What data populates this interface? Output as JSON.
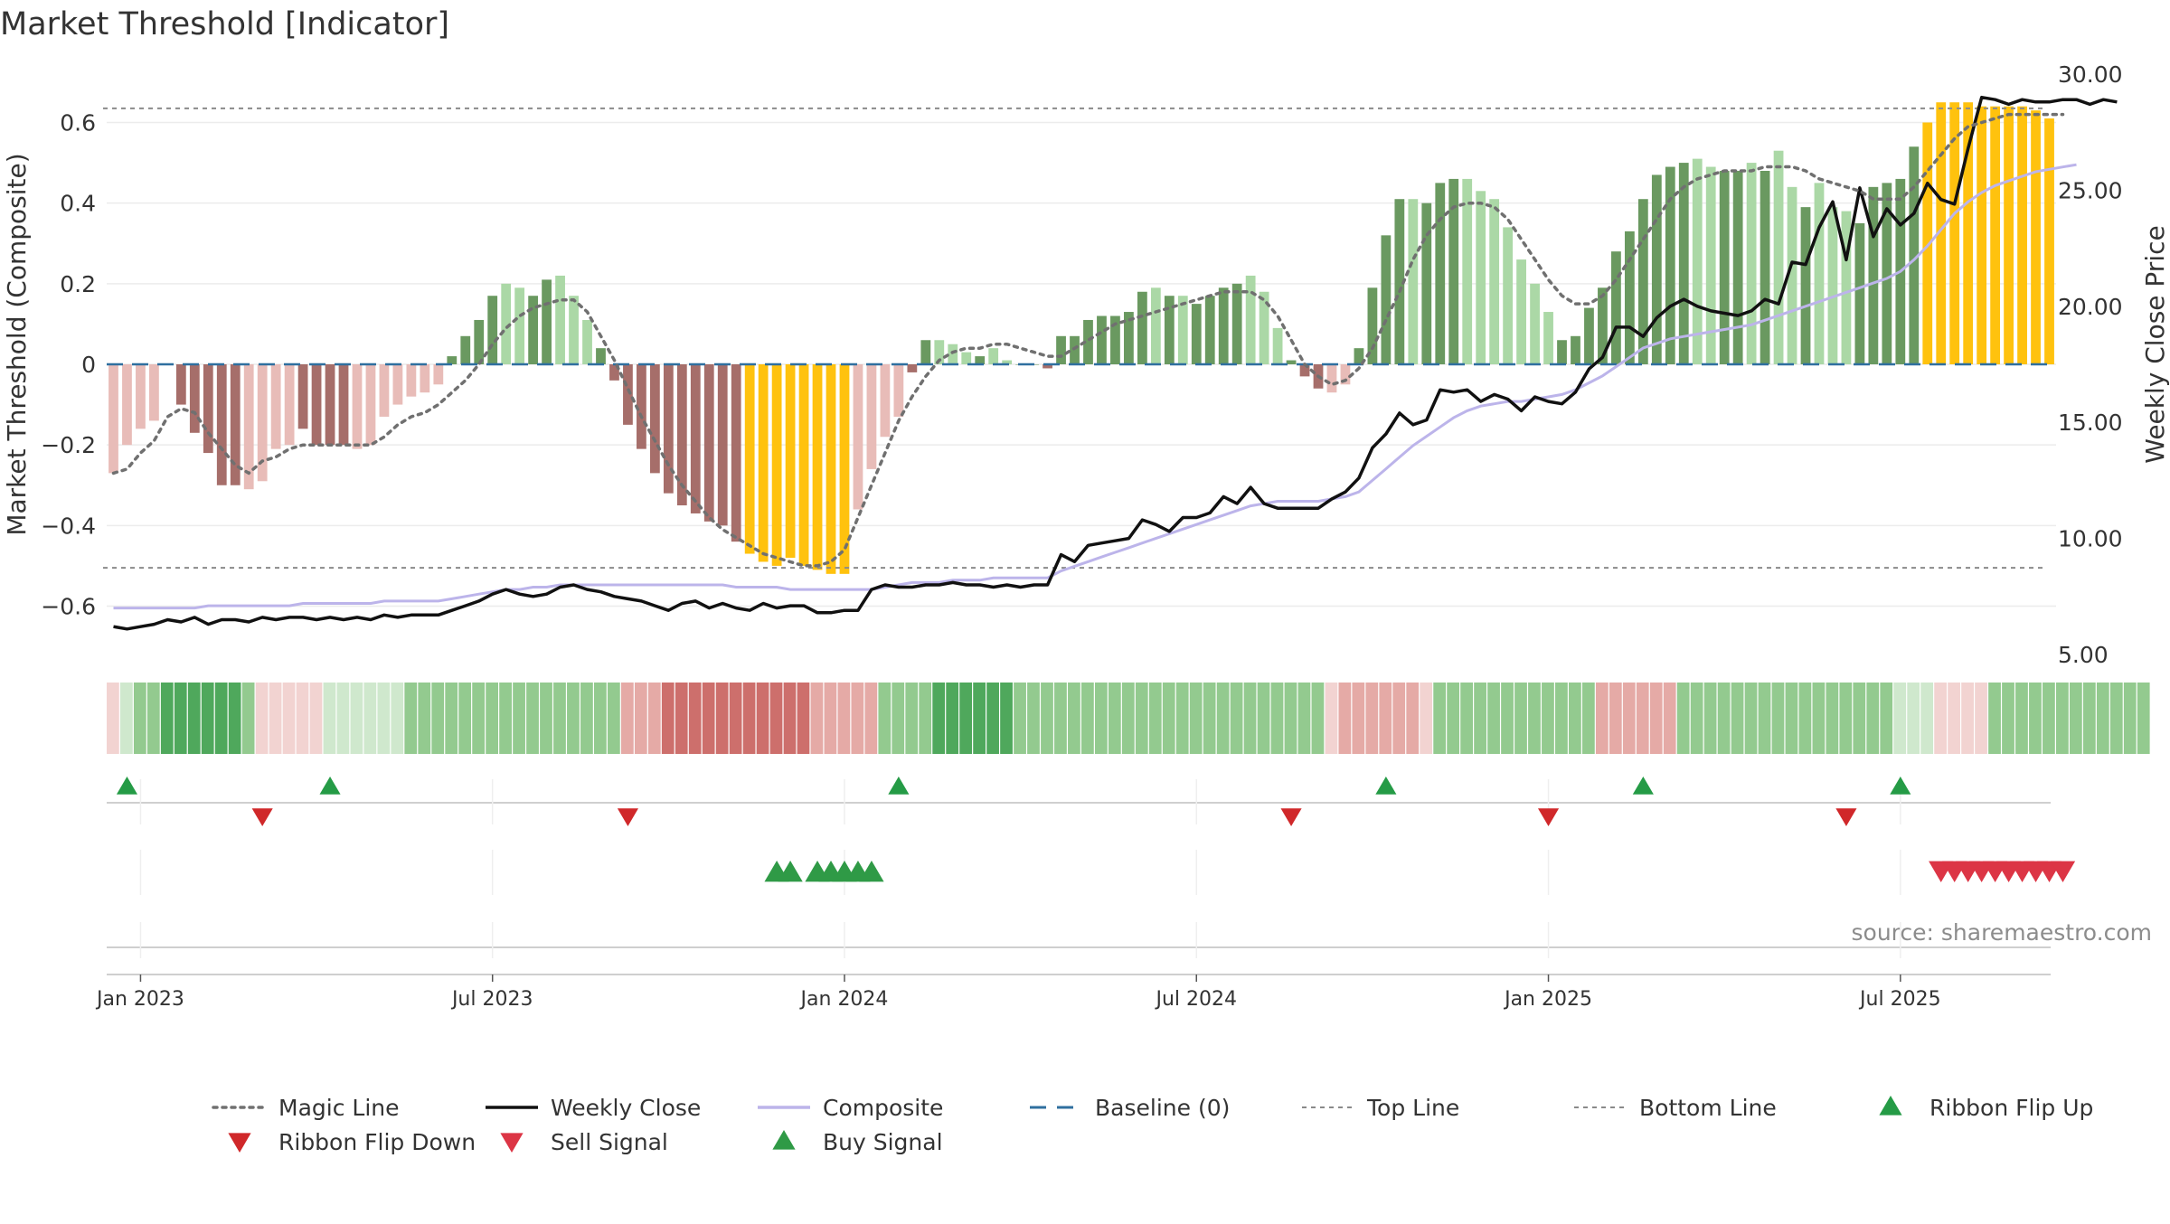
{
  "chart_data": {
    "type": "bar",
    "title": "Market Threshold [Indicator]",
    "ylabel_left": "Market Threshold (Composite)",
    "ylabel_right": "Weekly Close Price",
    "source": "source: sharemaestro.com",
    "y_left_range": [
      -0.72,
      0.72
    ],
    "y_right_range": [
      5.0,
      30.0
    ],
    "y_left_ticks": [
      {
        "value": 0.6,
        "label": "0.6"
      },
      {
        "value": 0.4,
        "label": "0.4"
      },
      {
        "value": 0.2,
        "label": "0.2"
      },
      {
        "value": 0.0,
        "label": "0"
      },
      {
        "value": -0.2,
        "label": "−0.2"
      },
      {
        "value": -0.4,
        "label": "−0.4"
      },
      {
        "value": -0.6,
        "label": "−0.6"
      }
    ],
    "y_right_ticks": [
      {
        "value": 30,
        "label": "30.00"
      },
      {
        "value": 25,
        "label": "25.00"
      },
      {
        "value": 20,
        "label": "20.00"
      },
      {
        "value": 15,
        "label": "15.00"
      },
      {
        "value": 10,
        "label": "10.00"
      },
      {
        "value": 5,
        "label": "5.00"
      }
    ],
    "x_ticks": [
      {
        "week": 2,
        "label": "Jan 2023"
      },
      {
        "week": 28,
        "label": "Jul 2023"
      },
      {
        "week": 54,
        "label": "Jan 2024"
      },
      {
        "week": 80,
        "label": "Jul 2024"
      },
      {
        "week": 106,
        "label": "Jan 2025"
      },
      {
        "week": 132,
        "label": "Jul 2025"
      }
    ],
    "top_line": 0.635,
    "bottom_line": -0.505,
    "baseline": 0,
    "composite_values": [
      -0.27,
      -0.2,
      -0.16,
      -0.14,
      0,
      -0.1,
      -0.17,
      -0.22,
      -0.3,
      -0.3,
      -0.31,
      -0.29,
      -0.21,
      -0.2,
      -0.16,
      -0.2,
      -0.2,
      -0.2,
      -0.21,
      -0.2,
      -0.13,
      -0.1,
      -0.08,
      -0.07,
      -0.05,
      0.02,
      0.07,
      0.11,
      0.17,
      0.2,
      0.19,
      0.17,
      0.21,
      0.22,
      0.17,
      0.11,
      0.04,
      -0.04,
      -0.15,
      -0.21,
      -0.27,
      -0.32,
      -0.35,
      -0.37,
      -0.39,
      -0.4,
      -0.44,
      -0.47,
      -0.49,
      -0.5,
      -0.48,
      -0.5,
      -0.51,
      -0.52,
      -0.52,
      -0.36,
      -0.26,
      -0.18,
      -0.13,
      -0.02,
      0.06,
      0.06,
      0.05,
      0.03,
      0.02,
      0.04,
      0.01,
      0.0,
      0.0,
      -0.01,
      0.07,
      0.07,
      0.11,
      0.12,
      0.12,
      0.13,
      0.18,
      0.19,
      0.17,
      0.17,
      0.15,
      0.17,
      0.19,
      0.2,
      0.22,
      0.18,
      0.09,
      0.01,
      -0.03,
      -0.06,
      -0.07,
      -0.05,
      0.04,
      0.19,
      0.32,
      0.41,
      0.41,
      0.4,
      0.45,
      0.46,
      0.46,
      0.43,
      0.41,
      0.34,
      0.26,
      0.2,
      0.13,
      0.06,
      0.07,
      0.14,
      0.19,
      0.28,
      0.33,
      0.41,
      0.47,
      0.49,
      0.5,
      0.51,
      0.49,
      0.48,
      0.48,
      0.5,
      0.48,
      0.53,
      0.44,
      0.39,
      0.45,
      0.39,
      0.38,
      0.35,
      0.44,
      0.45,
      0.46,
      0.54,
      0.6,
      0.65,
      0.65,
      0.65,
      0.64,
      0.64,
      0.64,
      0.64,
      0.63,
      0.61
    ],
    "weekly_close": [
      6.2,
      6.1,
      6.2,
      6.3,
      6.5,
      6.4,
      6.6,
      6.3,
      6.5,
      6.5,
      6.4,
      6.6,
      6.5,
      6.6,
      6.6,
      6.5,
      6.6,
      6.5,
      6.6,
      6.5,
      6.7,
      6.6,
      6.7,
      6.7,
      6.7,
      6.9,
      7.1,
      7.3,
      7.6,
      7.8,
      7.6,
      7.5,
      7.6,
      7.9,
      8.0,
      7.8,
      7.7,
      7.5,
      7.4,
      7.3,
      7.1,
      6.9,
      7.2,
      7.3,
      7.0,
      7.2,
      7.0,
      6.9,
      7.2,
      7.0,
      7.1,
      7.1,
      6.8,
      6.8,
      6.9,
      6.9,
      7.8,
      8.0,
      7.9,
      7.9,
      8.0,
      8.0,
      8.1,
      8.0,
      8.0,
      7.9,
      8.0,
      7.9,
      8.0,
      8.0,
      9.3,
      9.0,
      9.7,
      9.8,
      9.9,
      10.0,
      10.8,
      10.6,
      10.3,
      10.9,
      10.9,
      11.1,
      11.8,
      11.5,
      12.2,
      11.5,
      11.3,
      11.3,
      11.3,
      11.3,
      11.7,
      12.0,
      12.6,
      13.9,
      14.5,
      15.4,
      14.9,
      15.1,
      16.4,
      16.3,
      16.4,
      15.9,
      16.2,
      16.0,
      15.5,
      16.1,
      15.9,
      15.8,
      16.3,
      17.3,
      17.8,
      19.1,
      19.1,
      18.7,
      19.5,
      20.0,
      20.3,
      20.0,
      19.8,
      19.7,
      19.6,
      19.8,
      20.3,
      20.1,
      21.9,
      21.8,
      23.4,
      24.5,
      22.0,
      25.1,
      23.0,
      24.2,
      23.5,
      24.0,
      25.3,
      24.6,
      24.4,
      26.8,
      29.0,
      28.9,
      28.7,
      28.9,
      28.8,
      28.8,
      28.9,
      28.9,
      28.7,
      28.9,
      28.8
    ],
    "magic_line": [
      -0.27,
      -0.26,
      -0.22,
      -0.19,
      -0.13,
      -0.11,
      -0.12,
      -0.17,
      -0.21,
      -0.25,
      -0.27,
      -0.24,
      -0.23,
      -0.21,
      -0.2,
      -0.2,
      -0.2,
      -0.2,
      -0.2,
      -0.2,
      -0.18,
      -0.15,
      -0.13,
      -0.12,
      -0.1,
      -0.07,
      -0.04,
      0.0,
      0.05,
      0.09,
      0.12,
      0.14,
      0.15,
      0.16,
      0.16,
      0.13,
      0.07,
      0.01,
      -0.06,
      -0.13,
      -0.19,
      -0.25,
      -0.3,
      -0.34,
      -0.38,
      -0.41,
      -0.43,
      -0.45,
      -0.47,
      -0.48,
      -0.49,
      -0.5,
      -0.5,
      -0.49,
      -0.46,
      -0.38,
      -0.3,
      -0.22,
      -0.14,
      -0.08,
      -0.03,
      0.01,
      0.03,
      0.04,
      0.04,
      0.05,
      0.05,
      0.04,
      0.03,
      0.02,
      0.02,
      0.04,
      0.06,
      0.08,
      0.1,
      0.11,
      0.12,
      0.13,
      0.14,
      0.15,
      0.16,
      0.17,
      0.18,
      0.18,
      0.18,
      0.16,
      0.12,
      0.06,
      0.0,
      -0.03,
      -0.05,
      -0.04,
      -0.01,
      0.04,
      0.11,
      0.18,
      0.26,
      0.32,
      0.36,
      0.39,
      0.4,
      0.4,
      0.39,
      0.36,
      0.31,
      0.26,
      0.21,
      0.17,
      0.15,
      0.15,
      0.17,
      0.21,
      0.26,
      0.31,
      0.36,
      0.41,
      0.44,
      0.46,
      0.47,
      0.48,
      0.48,
      0.48,
      0.49,
      0.49,
      0.49,
      0.48,
      0.46,
      0.45,
      0.44,
      0.43,
      0.41,
      0.41,
      0.41,
      0.44,
      0.48,
      0.52,
      0.56,
      0.59,
      0.6,
      0.61,
      0.62,
      0.62,
      0.62,
      0.62,
      0.62
    ],
    "composite_line_price": [
      7.0,
      7.0,
      7.0,
      7.0,
      7.0,
      7.0,
      7.0,
      7.1,
      7.1,
      7.1,
      7.1,
      7.1,
      7.1,
      7.1,
      7.2,
      7.2,
      7.2,
      7.2,
      7.2,
      7.2,
      7.3,
      7.3,
      7.3,
      7.3,
      7.3,
      7.4,
      7.5,
      7.6,
      7.7,
      7.8,
      7.8,
      7.9,
      7.9,
      8.0,
      8.0,
      8.0,
      8.0,
      8.0,
      8.0,
      8.0,
      8.0,
      8.0,
      8.0,
      8.0,
      8.0,
      8.0,
      7.9,
      7.9,
      7.9,
      7.9,
      7.8,
      7.8,
      7.8,
      7.8,
      7.8,
      7.8,
      7.8,
      7.9,
      8.0,
      8.1,
      8.1,
      8.1,
      8.2,
      8.2,
      8.2,
      8.3,
      8.3,
      8.3,
      8.3,
      8.3,
      8.6,
      8.8,
      9.0,
      9.2,
      9.4,
      9.6,
      9.8,
      10.0,
      10.2,
      10.4,
      10.6,
      10.8,
      11.0,
      11.2,
      11.4,
      11.5,
      11.6,
      11.6,
      11.6,
      11.6,
      11.7,
      11.8,
      12.0,
      12.5,
      13.0,
      13.5,
      14.0,
      14.4,
      14.8,
      15.2,
      15.5,
      15.7,
      15.8,
      15.9,
      15.9,
      16.0,
      16.1,
      16.2,
      16.4,
      16.7,
      17.0,
      17.4,
      17.8,
      18.2,
      18.4,
      18.6,
      18.7,
      18.8,
      18.9,
      19.0,
      19.1,
      19.2,
      19.4,
      19.6,
      19.8,
      20.0,
      20.2,
      20.4,
      20.6,
      20.8,
      21.0,
      21.2,
      21.5,
      22.0,
      22.6,
      23.3,
      24.0,
      24.5,
      24.9,
      25.2,
      25.4,
      25.6,
      25.8,
      25.9,
      26.0,
      26.1
    ],
    "ribbon_levels": [
      -1,
      1,
      2,
      2,
      3,
      3,
      3,
      3,
      3,
      3,
      2,
      -1,
      -1,
      -1,
      -1,
      -1,
      1,
      1,
      1,
      1,
      1,
      1,
      2,
      2,
      2,
      2,
      2,
      2,
      2,
      2,
      2,
      2,
      2,
      2,
      2,
      2,
      2,
      2,
      -2,
      -2,
      -2,
      -3,
      -3,
      -3,
      -3,
      -3,
      -3,
      -3,
      -3,
      -3,
      -3,
      -3,
      -2,
      -2,
      -2,
      -2,
      -2,
      2,
      2,
      2,
      2,
      3,
      3,
      3,
      3,
      3,
      3,
      2,
      2,
      2,
      2,
      2,
      2,
      2,
      2,
      2,
      2,
      2,
      2,
      2,
      2,
      2,
      2,
      2,
      2,
      2,
      2,
      2,
      2,
      2,
      -1,
      -2,
      -2,
      -2,
      -2,
      -2,
      -2,
      -1,
      2,
      2,
      2,
      2,
      2,
      2,
      2,
      2,
      2,
      2,
      2,
      2,
      -2,
      -2,
      -2,
      -2,
      -2,
      -2,
      2,
      2,
      2,
      2,
      2,
      2,
      2,
      2,
      2,
      2,
      2,
      2,
      2,
      2,
      2,
      2,
      1,
      1,
      1,
      -1,
      -1,
      -1,
      -1,
      2,
      2,
      2,
      2,
      2,
      2,
      2,
      2,
      2,
      2,
      2,
      2
    ],
    "ribbon_flip_up_weeks": [
      1,
      16,
      58,
      94,
      113,
      132
    ],
    "ribbon_flip_down_weeks": [
      11,
      38,
      87,
      106,
      128
    ],
    "buy_signal_weeks": [
      49,
      50,
      52,
      53,
      54,
      55,
      56
    ],
    "sell_signal_weeks": [
      135,
      136,
      137,
      138,
      139,
      140,
      141,
      142,
      143,
      144
    ],
    "colors": {
      "pos_strong": "#6a9960",
      "pos_light": "#abd8a6",
      "neg_strong": "#a66e6a",
      "neg_light": "#e8bcb8",
      "gold": "#ffc20e",
      "magic": "#707070",
      "close": "#111111",
      "composite": "#bcb4ea",
      "baseline": "#2f6f9f",
      "flip_up": "#259b46",
      "flip_down": "#d0282a",
      "sell": "#dc3545",
      "buy": "#2f9a46"
    },
    "legend": [
      {
        "label": "Magic Line",
        "kind": "dotted",
        "color": "#707070"
      },
      {
        "label": "Weekly Close",
        "kind": "solid",
        "color": "#111111"
      },
      {
        "label": "Composite",
        "kind": "solid",
        "color": "#bcb4ea"
      },
      {
        "label": "Baseline (0)",
        "kind": "dashed",
        "color": "#2f6f9f"
      },
      {
        "label": "Top Line",
        "kind": "dashed-fine",
        "color": "#8a8a8a"
      },
      {
        "label": "Bottom Line",
        "kind": "dashed-fine",
        "color": "#8a8a8a"
      },
      {
        "label": "Ribbon Flip Up",
        "kind": "tri-up",
        "color": "#259b46"
      },
      {
        "label": "Ribbon Flip Down",
        "kind": "tri-down",
        "color": "#d0282a"
      },
      {
        "label": "Sell Signal",
        "kind": "tri-down",
        "color": "#dc3545"
      },
      {
        "label": "Buy Signal",
        "kind": "tri-up",
        "color": "#2f9a46"
      }
    ]
  }
}
